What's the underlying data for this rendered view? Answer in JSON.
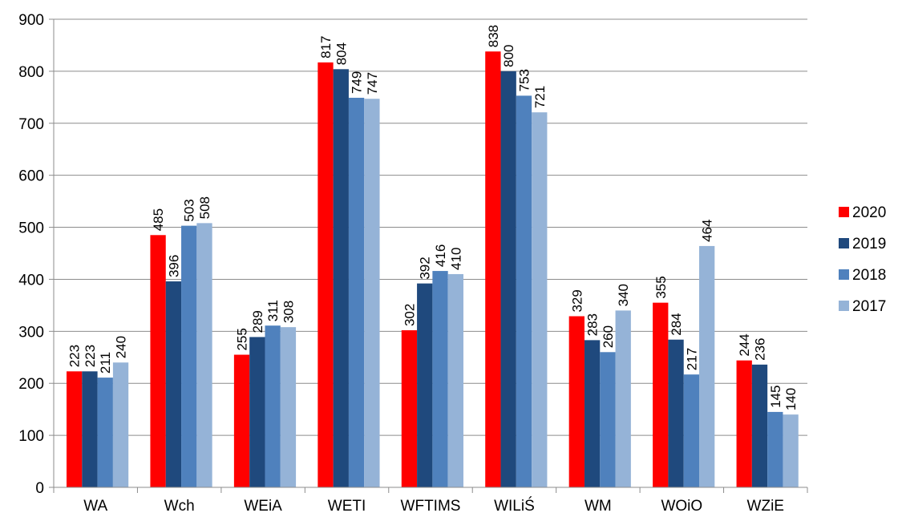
{
  "chart_data": {
    "type": "bar",
    "categories": [
      "WA",
      "Wch",
      "WEiA",
      "WETI",
      "WFTIMS",
      "WILiŚ",
      "WM",
      "WOiO",
      "WZiE"
    ],
    "series": [
      {
        "name": "2020",
        "color": "#ff0000",
        "values": [
          223,
          485,
          255,
          817,
          302,
          838,
          329,
          355,
          244
        ]
      },
      {
        "name": "2019",
        "color": "#1f497d",
        "values": [
          223,
          396,
          289,
          804,
          392,
          800,
          283,
          284,
          236
        ]
      },
      {
        "name": "2018",
        "color": "#4f81bd",
        "values": [
          211,
          503,
          311,
          749,
          416,
          753,
          260,
          217,
          145
        ]
      },
      {
        "name": "2017",
        "color": "#95b3d7",
        "values": [
          240,
          508,
          308,
          747,
          410,
          721,
          340,
          464,
          140
        ]
      }
    ],
    "ylim": [
      0,
      900
    ],
    "yticks": [
      0,
      100,
      200,
      300,
      400,
      500,
      600,
      700,
      800,
      900
    ],
    "grid": true,
    "legend_position": "right",
    "data_labels": true
  }
}
